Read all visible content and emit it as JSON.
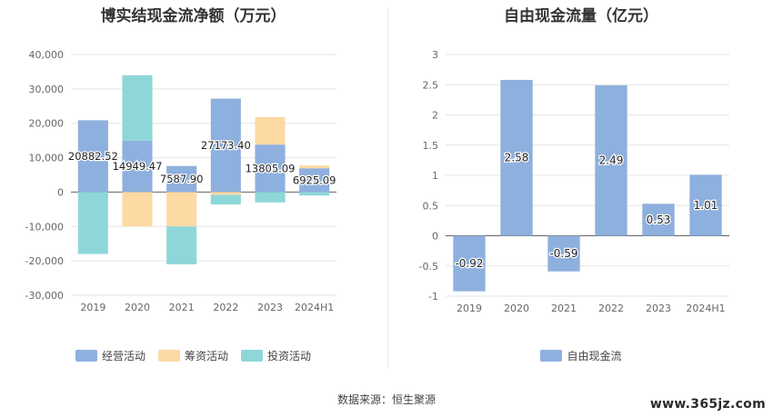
{
  "source": "数据来源：恒生聚源",
  "watermark": "www.365jz.com",
  "chart_data": [
    {
      "type": "bar",
      "stacked": true,
      "title": "博实结现金流净额（万元）",
      "categories": [
        "2019",
        "2020",
        "2021",
        "2022",
        "2023",
        "2024H1"
      ],
      "ylim": [
        -30000,
        40000
      ],
      "yticks": [
        -30000,
        -20000,
        -10000,
        0,
        10000,
        20000,
        30000,
        40000
      ],
      "ytick_labels": [
        "-30,000",
        "-20,000",
        "-10,000",
        "0",
        "10,000",
        "20,000",
        "30,000",
        "40,000"
      ],
      "grid": true,
      "legend_position": "bottom",
      "series": [
        {
          "name": "经营活动",
          "color": "#8eb0de",
          "values": [
            20882.52,
            14949.47,
            7587.9,
            27173.4,
            13805.09,
            6925.09
          ],
          "labels": [
            "20882.52",
            "14949.47",
            "7587.90",
            "27173.40",
            "13805.09",
            "6925.09"
          ]
        },
        {
          "name": "筹资活动",
          "color": "#fdd9a3",
          "values": [
            0,
            -10000,
            -10000,
            -800,
            8000,
            800
          ]
        },
        {
          "name": "投资活动",
          "color": "#8ed7d9",
          "values": [
            -18000,
            19000,
            -11000,
            -2800,
            -3000,
            -1000
          ]
        }
      ]
    },
    {
      "type": "bar",
      "title": "自由现金流量（亿元）",
      "categories": [
        "2019",
        "2020",
        "2021",
        "2022",
        "2023",
        "2024H1"
      ],
      "ylim": [
        -1,
        3
      ],
      "yticks": [
        -1,
        -0.5,
        0,
        0.5,
        1,
        1.5,
        2,
        2.5,
        3
      ],
      "ytick_labels": [
        "-1",
        "-0.5",
        "0",
        "0.5",
        "1",
        "1.5",
        "2",
        "2.5",
        "3"
      ],
      "grid": true,
      "legend_position": "bottom",
      "series": [
        {
          "name": "自由现金流",
          "color": "#8eb0de",
          "values": [
            -0.92,
            2.58,
            -0.59,
            2.49,
            0.53,
            1.01
          ],
          "labels": [
            "-0.92",
            "2.58",
            "-0.59",
            "2.49",
            "0.53",
            "1.01"
          ]
        }
      ]
    }
  ]
}
